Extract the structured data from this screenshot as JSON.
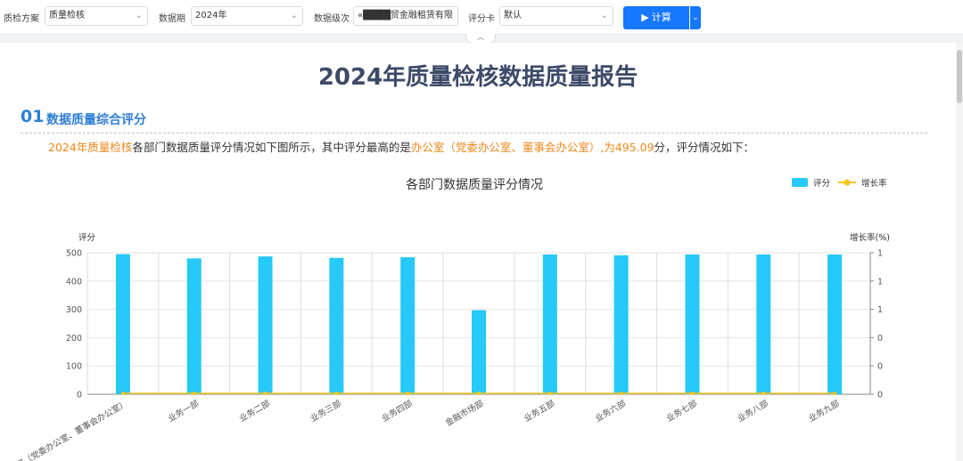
{
  "toolbar": {
    "plan_label": "质检方案",
    "plan_value": "质量检核",
    "period_label": "数据期",
    "period_value": "2024年",
    "level_label": "数据级次",
    "level_value": "«████贸金融租赁有限",
    "card_label": "评分卡",
    "card_value": "默认",
    "run_label": "计算",
    "chevron": "⌄",
    "play_glyph": "▶"
  },
  "report": {
    "title": "2024年质量检核数据质量报告",
    "section_num": "01",
    "section_title": "数据质量综合评分",
    "para": {
      "hl1": "2024年质量检核",
      "t1": "各部门数据质量评分情况如下图所示，其中评分最高的是",
      "hl2": "办公室（党委办公室、董事会办公室）,为495.09",
      "t2": "分，评分情况如下："
    }
  },
  "colors": {
    "bar": "#26c9f7",
    "line": "#f5c518",
    "title": "#3d4a68",
    "section": "#2f7fd6",
    "highlight": "#f0881c",
    "button": "#1677ff"
  },
  "chart_data": {
    "type": "bar",
    "title": "各部门数据质量评分情况",
    "ylabel": "评分",
    "y2label": "增长率(%)",
    "ylim": [
      0,
      500
    ],
    "yticks": [
      0,
      100,
      200,
      300,
      400,
      500
    ],
    "y2ticks": [
      "0",
      "0",
      "0",
      "1",
      "1",
      "1"
    ],
    "legend_position": "top-right",
    "categories": [
      "办公室（党委办公室、董事会办公室）",
      "业务一部",
      "业务二部",
      "业务三部",
      "业务四部",
      "金融市场部",
      "业务五部",
      "业务六部",
      "业务七部",
      "业务八部",
      "业务九部"
    ],
    "series": [
      {
        "name": "评分",
        "kind": "bar",
        "values": [
          495.09,
          480,
          487,
          482,
          484,
          297,
          494,
          491,
          494,
          494,
          494
        ]
      },
      {
        "name": "增长率",
        "kind": "line",
        "values": [
          0,
          0,
          0,
          0,
          0,
          0,
          0,
          0,
          0,
          0,
          0
        ]
      }
    ]
  }
}
